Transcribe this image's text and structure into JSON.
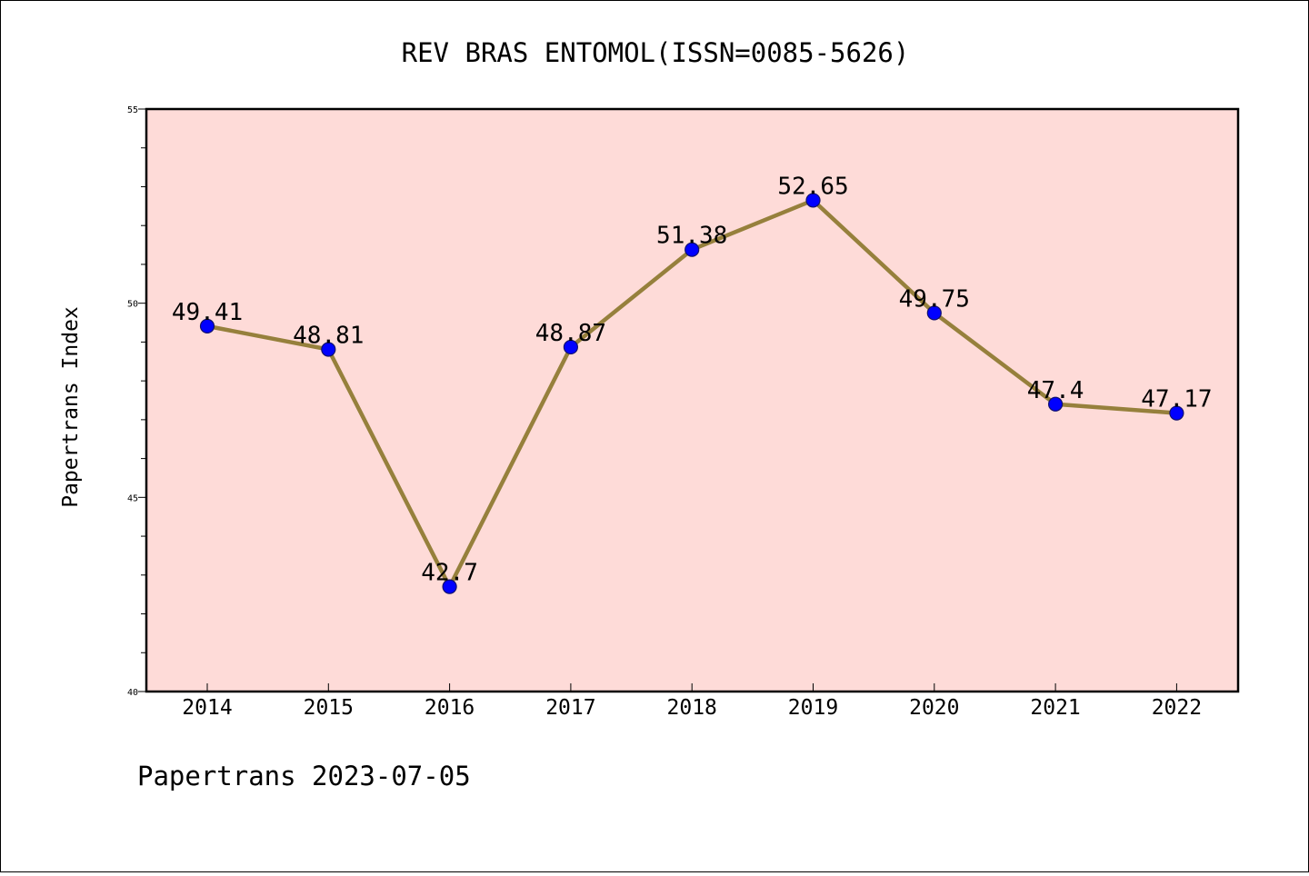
{
  "colors": {
    "plot_background": "#fedbd8",
    "line": "#96803c",
    "marker_fill": "#0000ff",
    "marker_edge": "#10106e",
    "axis": "#000000"
  },
  "chart_data": {
    "type": "line",
    "title": "REV BRAS ENTOMOL(ISSN=0085-5626)",
    "xlabel": "",
    "ylabel": "Papertrans Index",
    "footer": "Papertrans 2023-07-05",
    "ylim": [
      40,
      55
    ],
    "ytick_major": [
      40,
      45,
      50,
      55
    ],
    "ytick_labels": [
      "40",
      "45",
      "50",
      "55"
    ],
    "ytick_minor_step": 1,
    "grid": false,
    "legend": "none",
    "categories": [
      "2014",
      "2015",
      "2016",
      "2017",
      "2018",
      "2019",
      "2020",
      "2021",
      "2022"
    ],
    "series": [
      {
        "values": [
          49.41,
          48.81,
          42.7,
          48.87,
          51.38,
          52.65,
          49.75,
          47.4,
          47.17
        ],
        "labels": [
          "49.41",
          "48.81",
          "42.7",
          "48.87",
          "51.38",
          "52.65",
          "49.75",
          "47.4",
          "47.17"
        ]
      }
    ]
  }
}
